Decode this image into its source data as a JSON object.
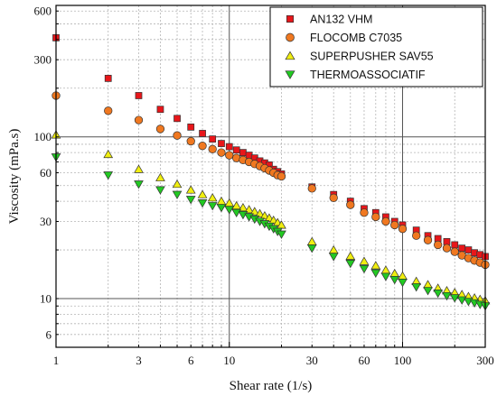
{
  "chart_data": {
    "type": "scatter",
    "xlabel": "Shear rate (1/s)",
    "ylabel": "Viscosity (mPa.s)",
    "xscale": "log",
    "yscale": "log",
    "xlim": [
      1,
      300
    ],
    "ylim": [
      5,
      650
    ],
    "x_ticks": [
      1,
      3,
      6,
      10,
      30,
      60,
      100,
      300
    ],
    "y_ticks": [
      6,
      10,
      30,
      60,
      100,
      300,
      600
    ],
    "x_major_grid": [
      10,
      100
    ],
    "y_major_grid": [
      10,
      100
    ],
    "grid": true,
    "legend_position": "top-right",
    "series": [
      {
        "name": "AN132 VHM",
        "marker": "square",
        "color": "#e8161a",
        "points": [
          [
            1,
            410
          ],
          [
            2,
            230
          ],
          [
            3,
            180
          ],
          [
            4,
            148
          ],
          [
            5,
            130
          ],
          [
            6,
            115
          ],
          [
            7,
            105
          ],
          [
            8,
            97
          ],
          [
            9,
            91
          ],
          [
            10,
            87
          ],
          [
            11,
            83
          ],
          [
            12,
            80
          ],
          [
            13,
            77
          ],
          [
            14,
            74
          ],
          [
            15,
            71
          ],
          [
            16,
            69
          ],
          [
            17,
            67
          ],
          [
            18,
            63
          ],
          [
            19,
            61
          ],
          [
            20,
            59
          ],
          [
            30,
            49
          ],
          [
            40,
            44
          ],
          [
            50,
            40
          ],
          [
            60,
            36
          ],
          [
            70,
            34
          ],
          [
            80,
            32
          ],
          [
            90,
            30
          ],
          [
            100,
            28.5
          ],
          [
            120,
            26.5
          ],
          [
            140,
            24.5
          ],
          [
            160,
            23.5
          ],
          [
            180,
            22.5
          ],
          [
            200,
            21.5
          ],
          [
            220,
            20.5
          ],
          [
            240,
            20
          ],
          [
            260,
            19.2
          ],
          [
            280,
            18.7
          ],
          [
            300,
            18.2
          ]
        ]
      },
      {
        "name": "FLOCOMB C7035",
        "marker": "circle",
        "color": "#f07820",
        "points": [
          [
            1,
            180
          ],
          [
            2,
            145
          ],
          [
            3,
            127
          ],
          [
            4,
            112
          ],
          [
            5,
            102
          ],
          [
            6,
            94
          ],
          [
            7,
            88
          ],
          [
            8,
            84
          ],
          [
            9,
            80
          ],
          [
            10,
            77
          ],
          [
            11,
            74
          ],
          [
            12,
            72
          ],
          [
            13,
            70
          ],
          [
            14,
            68
          ],
          [
            15,
            66
          ],
          [
            16,
            64
          ],
          [
            17,
            62
          ],
          [
            18,
            60
          ],
          [
            19,
            58
          ],
          [
            20,
            57
          ],
          [
            30,
            48
          ],
          [
            40,
            42
          ],
          [
            50,
            38
          ],
          [
            60,
            34
          ],
          [
            70,
            32
          ],
          [
            80,
            30
          ],
          [
            90,
            28.5
          ],
          [
            100,
            27
          ],
          [
            120,
            24.5
          ],
          [
            140,
            23
          ],
          [
            160,
            21.5
          ],
          [
            180,
            20.5
          ],
          [
            200,
            19.5
          ],
          [
            220,
            18.5
          ],
          [
            240,
            17.8
          ],
          [
            260,
            17.2
          ],
          [
            280,
            16.7
          ],
          [
            300,
            16.2
          ]
        ]
      },
      {
        "name": "SUPERPUSHER SAV55",
        "marker": "triangle-up",
        "color": "#f0ee10",
        "points": [
          [
            1,
            103
          ],
          [
            2,
            78
          ],
          [
            3,
            63
          ],
          [
            4,
            56
          ],
          [
            5,
            51
          ],
          [
            6,
            47
          ],
          [
            7,
            44
          ],
          [
            8,
            42
          ],
          [
            9,
            40
          ],
          [
            10,
            39
          ],
          [
            11,
            37.5
          ],
          [
            12,
            36.5
          ],
          [
            13,
            35.5
          ],
          [
            14,
            34.5
          ],
          [
            15,
            33.5
          ],
          [
            16,
            32.5
          ],
          [
            17,
            31.5
          ],
          [
            18,
            30.5
          ],
          [
            19,
            29.5
          ],
          [
            20,
            28.5
          ],
          [
            30,
            22.5
          ],
          [
            40,
            20
          ],
          [
            50,
            18.3
          ],
          [
            60,
            17
          ],
          [
            70,
            16
          ],
          [
            80,
            15
          ],
          [
            90,
            14.3
          ],
          [
            100,
            13.8
          ],
          [
            120,
            12.8
          ],
          [
            140,
            12.2
          ],
          [
            160,
            11.6
          ],
          [
            180,
            11.2
          ],
          [
            200,
            10.9
          ],
          [
            220,
            10.6
          ],
          [
            240,
            10.3
          ],
          [
            260,
            10.1
          ],
          [
            280,
            9.9
          ],
          [
            300,
            9.7
          ]
        ]
      },
      {
        "name": "THERMOASSOCIATIF",
        "marker": "triangle-down",
        "color": "#22c922",
        "points": [
          [
            1,
            75
          ],
          [
            2,
            58
          ],
          [
            3,
            51
          ],
          [
            4,
            47
          ],
          [
            5,
            44
          ],
          [
            6,
            41
          ],
          [
            7,
            39
          ],
          [
            8,
            37.5
          ],
          [
            9,
            36.5
          ],
          [
            10,
            35.5
          ],
          [
            11,
            34
          ],
          [
            12,
            33
          ],
          [
            13,
            32
          ],
          [
            14,
            31
          ],
          [
            15,
            30
          ],
          [
            16,
            29
          ],
          [
            17,
            28
          ],
          [
            18,
            27
          ],
          [
            19,
            26
          ],
          [
            20,
            25
          ],
          [
            30,
            20.5
          ],
          [
            40,
            18.2
          ],
          [
            50,
            16.5
          ],
          [
            60,
            15.3
          ],
          [
            70,
            14.4
          ],
          [
            80,
            13.7
          ],
          [
            90,
            13.1
          ],
          [
            100,
            12.6
          ],
          [
            120,
            11.8
          ],
          [
            140,
            11.2
          ],
          [
            160,
            10.8
          ],
          [
            180,
            10.4
          ],
          [
            200,
            10.1
          ],
          [
            220,
            9.8
          ],
          [
            240,
            9.6
          ],
          [
            260,
            9.4
          ],
          [
            280,
            9.2
          ],
          [
            300,
            9.0
          ]
        ]
      }
    ]
  }
}
